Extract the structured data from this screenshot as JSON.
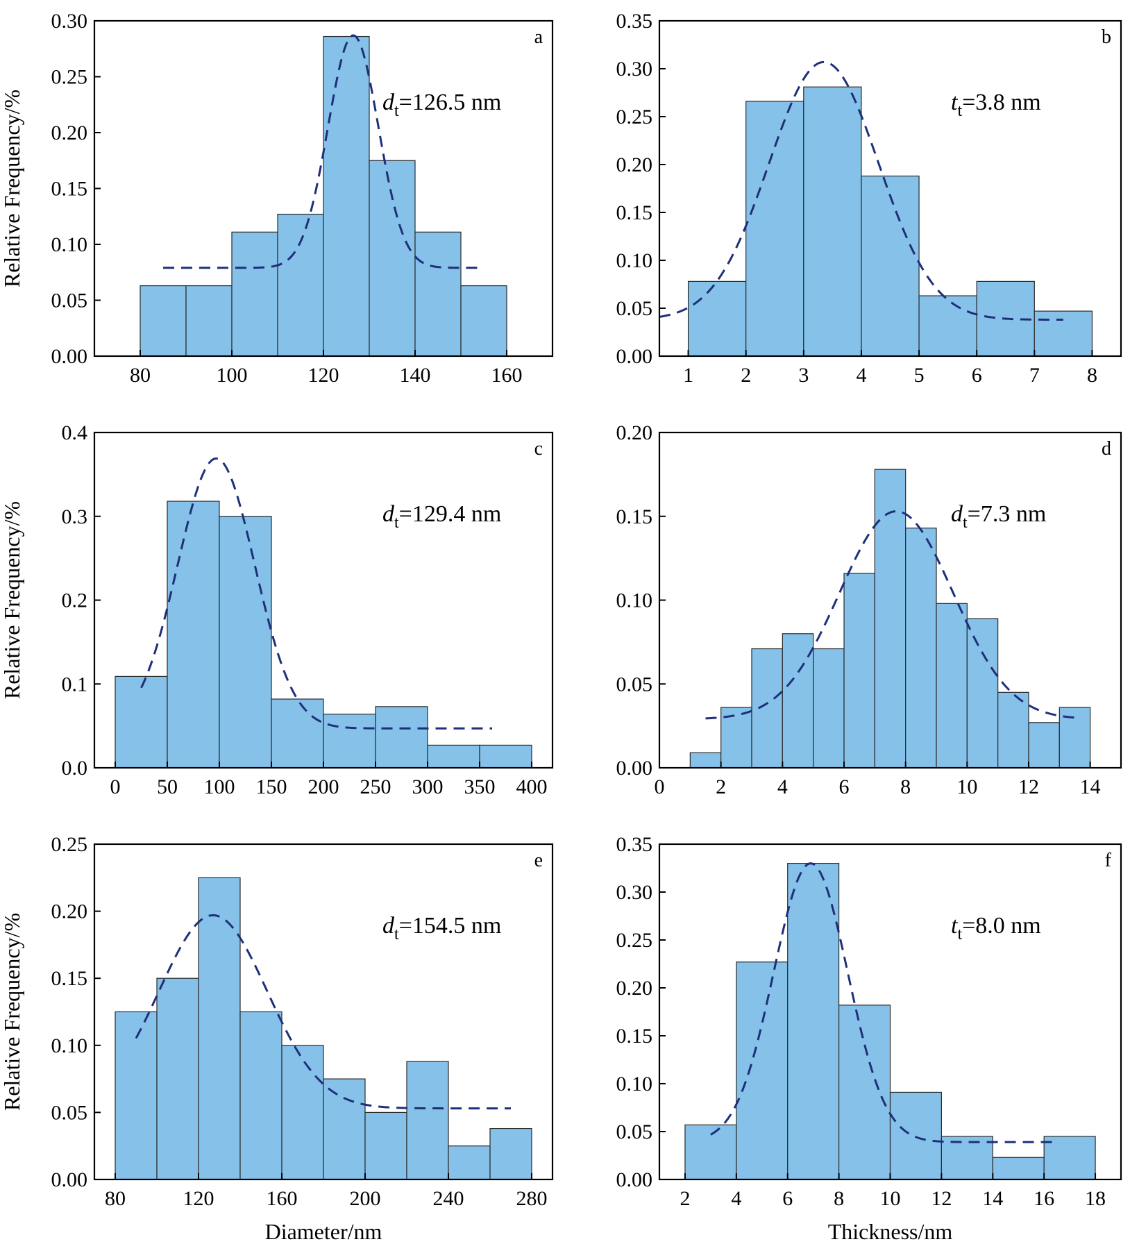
{
  "colors": {
    "bar_fill": "#85c1e9",
    "bar_stroke": "#2a2a2a",
    "fit_line": "#1f2f7a",
    "axis": "#000000"
  },
  "chart_data": [
    {
      "type": "bar",
      "letter": "a",
      "annotation": {
        "var": "d",
        "sub": "t",
        "text": "=126.5 nm"
      },
      "xlabel": "",
      "ylabel": "Relative Frequency/%",
      "xlim": [
        70,
        170
      ],
      "ylim": [
        0,
        0.3
      ],
      "xticks": [
        80,
        100,
        120,
        140,
        160
      ],
      "yticks": [
        0.0,
        0.05,
        0.1,
        0.15,
        0.2,
        0.25,
        0.3
      ],
      "ytick_decimals": 2,
      "bins": [
        {
          "x0": 80,
          "x1": 90,
          "value": 0.063
        },
        {
          "x0": 90,
          "x1": 100,
          "value": 0.063
        },
        {
          "x0": 100,
          "x1": 110,
          "value": 0.111
        },
        {
          "x0": 110,
          "x1": 120,
          "value": 0.127
        },
        {
          "x0": 120,
          "x1": 130,
          "value": 0.286
        },
        {
          "x0": 130,
          "x1": 140,
          "value": 0.175
        },
        {
          "x0": 140,
          "x1": 150,
          "value": 0.111
        },
        {
          "x0": 150,
          "x1": 160,
          "value": 0.063
        }
      ],
      "fit": {
        "center": 126.5,
        "baseline": 0.079,
        "amplitude": 0.208,
        "sigma": 5.5,
        "range": [
          85,
          155
        ]
      }
    },
    {
      "type": "bar",
      "letter": "b",
      "annotation": {
        "var": "t",
        "sub": "t",
        "text": "=3.8 nm"
      },
      "xlabel": "",
      "ylabel": "",
      "xlim": [
        0.5,
        8.5
      ],
      "ylim": [
        0,
        0.35
      ],
      "xticks": [
        1,
        2,
        3,
        4,
        5,
        6,
        7,
        8
      ],
      "yticks": [
        0.0,
        0.05,
        0.1,
        0.15,
        0.2,
        0.25,
        0.3,
        0.35
      ],
      "ytick_decimals": 2,
      "bins": [
        {
          "x0": 1,
          "x1": 2,
          "value": 0.078
        },
        {
          "x0": 2,
          "x1": 3,
          "value": 0.266
        },
        {
          "x0": 3,
          "x1": 4,
          "value": 0.281
        },
        {
          "x0": 4,
          "x1": 5,
          "value": 0.188
        },
        {
          "x0": 5,
          "x1": 6,
          "value": 0.063
        },
        {
          "x0": 6,
          "x1": 7,
          "value": 0.078
        },
        {
          "x0": 7,
          "x1": 8,
          "value": 0.047
        }
      ],
      "fit": {
        "center": 3.35,
        "baseline": 0.038,
        "amplitude": 0.269,
        "sigma": 0.95,
        "range": [
          0.5,
          7.5
        ]
      }
    },
    {
      "type": "bar",
      "letter": "c",
      "annotation": {
        "var": "d",
        "sub": "t",
        "text": "=129.4 nm"
      },
      "xlabel": "",
      "ylabel": "Relative Frequency/%",
      "xlim": [
        -20,
        420
      ],
      "ylim": [
        0,
        0.4
      ],
      "xticks": [
        0,
        50,
        100,
        150,
        200,
        250,
        300,
        350,
        400
      ],
      "yticks": [
        0.0,
        0.1,
        0.2,
        0.3,
        0.4
      ],
      "ytick_decimals": 1,
      "bins": [
        {
          "x0": 0,
          "x1": 50,
          "value": 0.109
        },
        {
          "x0": 50,
          "x1": 100,
          "value": 0.318
        },
        {
          "x0": 100,
          "x1": 150,
          "value": 0.3
        },
        {
          "x0": 150,
          "x1": 200,
          "value": 0.082
        },
        {
          "x0": 200,
          "x1": 250,
          "value": 0.064
        },
        {
          "x0": 250,
          "x1": 300,
          "value": 0.073
        },
        {
          "x0": 300,
          "x1": 350,
          "value": 0.027
        },
        {
          "x0": 350,
          "x1": 400,
          "value": 0.027
        }
      ],
      "fit": {
        "center": 97,
        "baseline": 0.047,
        "amplitude": 0.322,
        "sigma": 37,
        "range": [
          25,
          362
        ]
      }
    },
    {
      "type": "bar",
      "letter": "d",
      "annotation": {
        "var": "d",
        "sub": "t",
        "text": "=7.3 nm"
      },
      "xlabel": "",
      "ylabel": "",
      "xlim": [
        0,
        15
      ],
      "ylim": [
        0,
        0.2
      ],
      "xticks": [
        0,
        2,
        4,
        6,
        8,
        10,
        12,
        14
      ],
      "yticks": [
        0.0,
        0.05,
        0.1,
        0.15,
        0.2
      ],
      "ytick_decimals": 2,
      "bins": [
        {
          "x0": 1,
          "x1": 2,
          "value": 0.009
        },
        {
          "x0": 2,
          "x1": 3,
          "value": 0.036
        },
        {
          "x0": 3,
          "x1": 4,
          "value": 0.071
        },
        {
          "x0": 4,
          "x1": 5,
          "value": 0.08
        },
        {
          "x0": 5,
          "x1": 6,
          "value": 0.071
        },
        {
          "x0": 6,
          "x1": 7,
          "value": 0.116
        },
        {
          "x0": 7,
          "x1": 8,
          "value": 0.178
        },
        {
          "x0": 8,
          "x1": 9,
          "value": 0.143
        },
        {
          "x0": 9,
          "x1": 10,
          "value": 0.098
        },
        {
          "x0": 10,
          "x1": 11,
          "value": 0.089
        },
        {
          "x0": 11,
          "x1": 12,
          "value": 0.045
        },
        {
          "x0": 12,
          "x1": 13,
          "value": 0.027
        },
        {
          "x0": 13,
          "x1": 14,
          "value": 0.036
        }
      ],
      "fit": {
        "center": 7.7,
        "baseline": 0.029,
        "amplitude": 0.124,
        "sigma": 1.85,
        "range": [
          1.5,
          13.5
        ]
      }
    },
    {
      "type": "bar",
      "letter": "e",
      "annotation": {
        "var": "d",
        "sub": "t",
        "text": "=154.5 nm"
      },
      "xlabel": "Diameter/nm",
      "ylabel": "Relative Frequency/%",
      "xlim": [
        70,
        290
      ],
      "ylim": [
        0,
        0.25
      ],
      "xticks": [
        80,
        120,
        160,
        200,
        240,
        280
      ],
      "yticks": [
        0.0,
        0.05,
        0.1,
        0.15,
        0.2,
        0.25
      ],
      "ytick_decimals": 2,
      "bins": [
        {
          "x0": 80,
          "x1": 100,
          "value": 0.125
        },
        {
          "x0": 100,
          "x1": 120,
          "value": 0.15
        },
        {
          "x0": 120,
          "x1": 140,
          "value": 0.225
        },
        {
          "x0": 140,
          "x1": 160,
          "value": 0.125
        },
        {
          "x0": 160,
          "x1": 180,
          "value": 0.1
        },
        {
          "x0": 180,
          "x1": 200,
          "value": 0.075
        },
        {
          "x0": 200,
          "x1": 220,
          "value": 0.05
        },
        {
          "x0": 220,
          "x1": 240,
          "value": 0.088
        },
        {
          "x0": 240,
          "x1": 260,
          "value": 0.025
        },
        {
          "x0": 260,
          "x1": 280,
          "value": 0.038
        }
      ],
      "fit": {
        "center": 127,
        "baseline": 0.053,
        "amplitude": 0.144,
        "sigma": 26,
        "range": [
          90,
          270
        ]
      }
    },
    {
      "type": "bar",
      "letter": "f",
      "annotation": {
        "var": "t",
        "sub": "t",
        "text": "=8.0 nm"
      },
      "xlabel": "Thickness/nm",
      "ylabel": "",
      "xlim": [
        1,
        19
      ],
      "ylim": [
        0,
        0.35
      ],
      "xticks": [
        2,
        4,
        6,
        8,
        10,
        12,
        14,
        16,
        18
      ],
      "yticks": [
        0.0,
        0.05,
        0.1,
        0.15,
        0.2,
        0.25,
        0.3,
        0.35
      ],
      "ytick_decimals": 2,
      "bins": [
        {
          "x0": 2,
          "x1": 4,
          "value": 0.057
        },
        {
          "x0": 4,
          "x1": 6,
          "value": 0.227
        },
        {
          "x0": 6,
          "x1": 8,
          "value": 0.33
        },
        {
          "x0": 8,
          "x1": 10,
          "value": 0.182
        },
        {
          "x0": 10,
          "x1": 12,
          "value": 0.091
        },
        {
          "x0": 12,
          "x1": 14,
          "value": 0.045
        },
        {
          "x0": 14,
          "x1": 16,
          "value": 0.023
        },
        {
          "x0": 16,
          "x1": 18,
          "value": 0.045
        }
      ],
      "fit": {
        "center": 6.9,
        "baseline": 0.039,
        "amplitude": 0.291,
        "sigma": 1.45,
        "range": [
          3,
          16.5
        ]
      }
    }
  ]
}
